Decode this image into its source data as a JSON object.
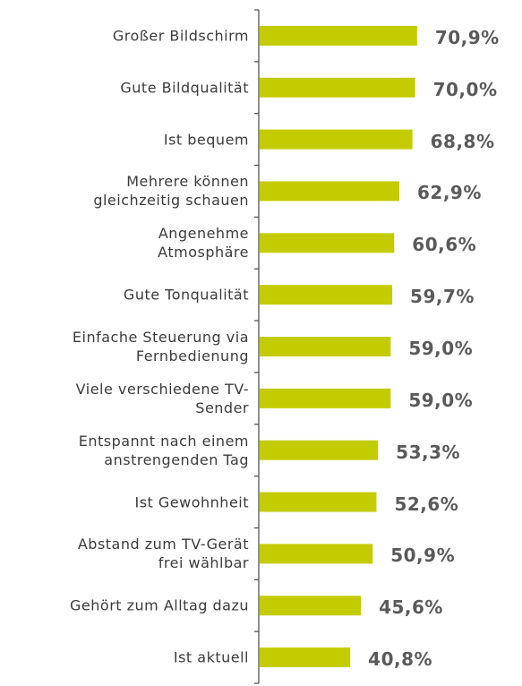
{
  "chart_data": {
    "type": "bar",
    "orientation": "horizontal",
    "color": "#c3cc00",
    "categories": [
      "Großer Bildschirm",
      "Gute Bildqualität",
      "Ist bequem",
      "Mehrere können\ngleichzeitig schauen",
      "Angenehme\nAtmosphäre",
      "Gute Tonqualität",
      "Einfache Steuerung via\nFernbedienung",
      "Viele verschiedene TV-\nSender",
      "Entspannt nach einem\nanstrengenden Tag",
      "Ist Gewohnheit",
      "Abstand zum TV-Gerät\nfrei wählbar",
      "Gehört zum Alltag dazu",
      "Ist aktuell"
    ],
    "values": [
      70.9,
      70.0,
      68.8,
      62.9,
      60.6,
      59.7,
      59.0,
      59.0,
      53.3,
      52.6,
      50.9,
      45.6,
      40.8
    ],
    "value_labels": [
      "70,9%",
      "70,0%",
      "68,8%",
      "62,9%",
      "60,6%",
      "59,7%",
      "59,0%",
      "59,0%",
      "53,3%",
      "52,6%",
      "50,9%",
      "45,6%",
      "40,8%"
    ]
  }
}
